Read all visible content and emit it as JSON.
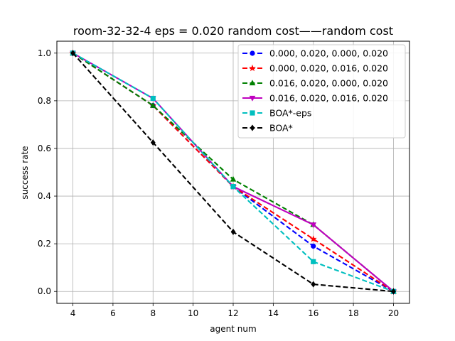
{
  "chart_data": {
    "type": "line",
    "title": "room-32-32-4    eps = 0.020    random cost——random cost",
    "xlabel": "agent num",
    "ylabel": "success rate",
    "xlim": [
      3.2,
      20.8
    ],
    "ylim": [
      -0.05,
      1.05
    ],
    "xticks": [
      4,
      6,
      8,
      10,
      12,
      14,
      16,
      18,
      20
    ],
    "yticks": [
      0.0,
      0.2,
      0.4,
      0.6,
      0.8,
      1.0
    ],
    "grid": true,
    "legend_position": "top-right",
    "x": [
      4,
      8,
      12,
      16,
      20
    ],
    "series": [
      {
        "name": "0.000, 0.020, 0.000, 0.020",
        "values": [
          1.0,
          0.78,
          0.44,
          0.19,
          0.0
        ],
        "color": "#0000ff",
        "marker": "circle",
        "dash": "dashed"
      },
      {
        "name": "0.000, 0.020, 0.016, 0.020",
        "values": [
          1.0,
          0.78,
          0.44,
          0.22,
          0.0
        ],
        "color": "#ff0000",
        "marker": "star",
        "dash": "dashed"
      },
      {
        "name": "0.016, 0.020, 0.000, 0.020",
        "values": [
          1.0,
          0.78,
          0.47,
          0.28,
          0.0
        ],
        "color": "#008000",
        "marker": "triangle-up",
        "dash": "dashed"
      },
      {
        "name": "0.016, 0.020, 0.016, 0.020",
        "values": [
          1.0,
          0.81,
          0.44,
          0.28,
          0.0
        ],
        "color": "#bf00bf",
        "marker": "triangle-down",
        "dash": "solid"
      },
      {
        "name": "BOA*-eps",
        "values": [
          1.0,
          0.81,
          0.44,
          0.125,
          0.0
        ],
        "color": "#00bfbf",
        "marker": "square",
        "dash": "dashed"
      },
      {
        "name": "BOA*",
        "values": [
          1.0,
          0.625,
          0.25,
          0.03,
          0.0
        ],
        "color": "#000000",
        "marker": "diamond",
        "dash": "dashed"
      }
    ]
  }
}
